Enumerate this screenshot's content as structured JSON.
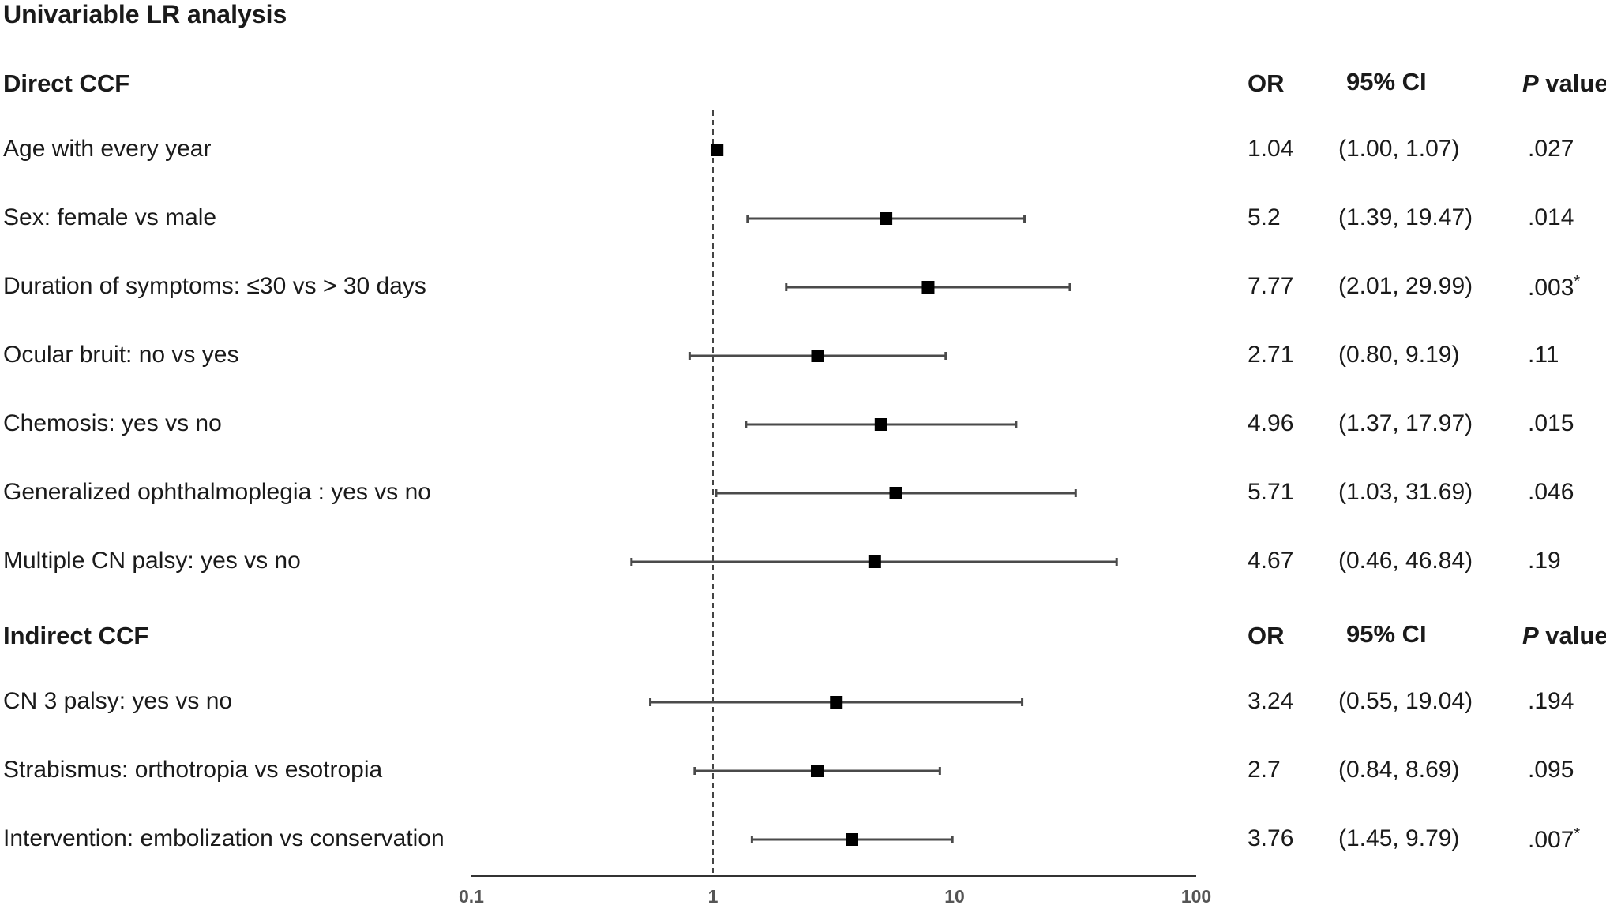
{
  "chart_data": {
    "type": "forest",
    "title": "Univariable LR analysis",
    "x_scale": "log",
    "xlim": [
      0.1,
      100
    ],
    "x_ticks": [
      "0.1",
      "1",
      "10",
      "100"
    ],
    "reference_line": 1,
    "columns": {
      "or": "OR",
      "ci": "95% CI",
      "p_italic": "P",
      "p_rest": " value"
    },
    "groups": [
      {
        "name": "Direct CCF",
        "rows": [
          {
            "label": "Age with every year",
            "or": 1.04,
            "lo": 1.0,
            "hi": 1.07,
            "or_text": "1.04",
            "ci_text": "(1.00, 1.07)",
            "p_text": ".027",
            "star": ""
          },
          {
            "label": "Sex: female vs male",
            "or": 5.2,
            "lo": 1.39,
            "hi": 19.47,
            "or_text": "5.2",
            "ci_text": "(1.39, 19.47)",
            "p_text": ".014",
            "star": ""
          },
          {
            "label": "Duration of symptoms: ≤30 vs > 30 days",
            "or": 7.77,
            "lo": 2.01,
            "hi": 29.99,
            "or_text": "7.77",
            "ci_text": "(2.01, 29.99)",
            "p_text": ".003",
            "star": "*"
          },
          {
            "label": "Ocular bruit: no vs yes",
            "or": 2.71,
            "lo": 0.8,
            "hi": 9.19,
            "or_text": "2.71",
            "ci_text": "(0.80, 9.19)",
            "p_text": ".11",
            "star": ""
          },
          {
            "label": "Chemosis: yes vs no",
            "or": 4.96,
            "lo": 1.37,
            "hi": 17.97,
            "or_text": "4.96",
            "ci_text": "(1.37, 17.97)",
            "p_text": ".015",
            "star": ""
          },
          {
            "label": "Generalized ophthalmoplegia : yes vs no",
            "or": 5.71,
            "lo": 1.03,
            "hi": 31.69,
            "or_text": "5.71",
            "ci_text": "(1.03, 31.69)",
            "p_text": ".046",
            "star": ""
          },
          {
            "label": "Multiple CN palsy: yes vs no",
            "or": 4.67,
            "lo": 0.46,
            "hi": 46.84,
            "or_text": "4.67",
            "ci_text": "(0.46, 46.84)",
            "p_text": ".19",
            "star": ""
          }
        ]
      },
      {
        "name": "Indirect CCF",
        "rows": [
          {
            "label": "CN 3 palsy: yes vs no",
            "or": 3.24,
            "lo": 0.55,
            "hi": 19.04,
            "or_text": "3.24",
            "ci_text": "(0.55, 19.04)",
            "p_text": ".194",
            "star": ""
          },
          {
            "label": "Strabismus: orthotropia vs esotropia",
            "or": 2.7,
            "lo": 0.84,
            "hi": 8.69,
            "or_text": "2.7",
            "ci_text": "(0.84, 8.69)",
            "p_text": ".095",
            "star": ""
          },
          {
            "label": "Intervention: embolization vs conservation",
            "or": 3.76,
            "lo": 1.45,
            "hi": 9.79,
            "or_text": "3.76",
            "ci_text": "(1.45, 9.79)",
            "p_text": ".007",
            "star": "*"
          }
        ]
      }
    ],
    "colors": {
      "marker": "#000000",
      "whisker": "#4a4a4a",
      "axis": "#333333",
      "reference": "#444444"
    }
  }
}
